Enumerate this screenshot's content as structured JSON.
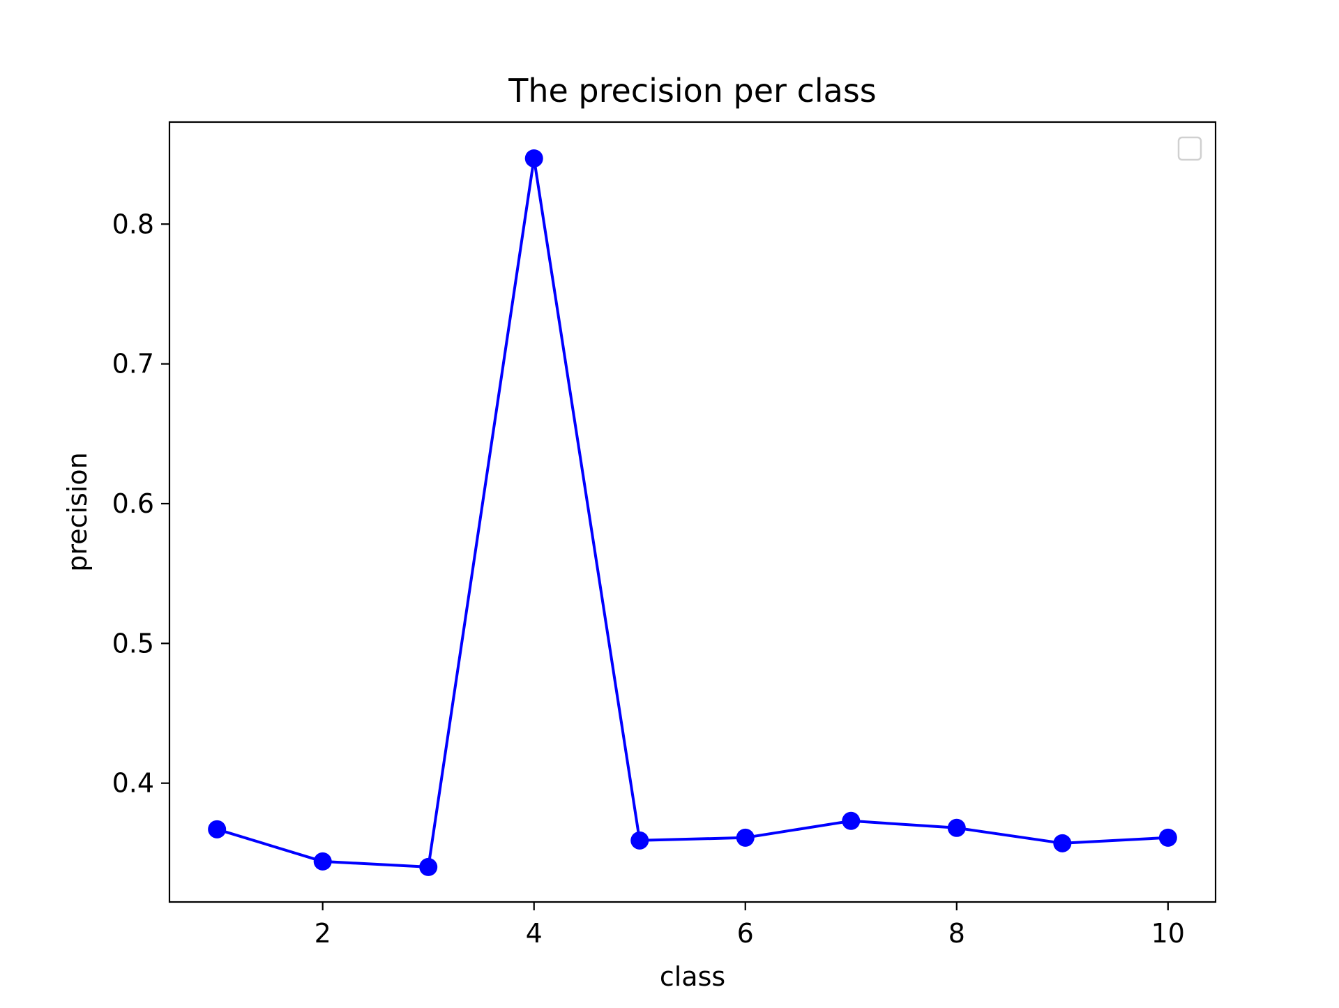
{
  "chart_data": {
    "type": "line",
    "title": "The precision per class",
    "xlabel": "class",
    "ylabel": "precision",
    "x": [
      1,
      2,
      3,
      4,
      5,
      6,
      7,
      8,
      9,
      10
    ],
    "series": [
      {
        "values": [
          0.367,
          0.344,
          0.34,
          0.847,
          0.359,
          0.361,
          0.373,
          0.368,
          0.357,
          0.361
        ],
        "color": "#0000ff"
      }
    ],
    "xlim": [
      0.55,
      10.45
    ],
    "ylim": [
      0.315,
      0.873
    ],
    "xticks": [
      2,
      4,
      6,
      8,
      10
    ],
    "xtick_labels": [
      "2",
      "4",
      "6",
      "8",
      "10"
    ],
    "yticks": [
      0.4,
      0.5,
      0.6,
      0.7,
      0.8
    ],
    "ytick_labels": [
      "0.4",
      "0.5",
      "0.6",
      "0.7",
      "0.8"
    ],
    "grid": false,
    "legend": {
      "placement": "upper-right",
      "entries": []
    }
  }
}
